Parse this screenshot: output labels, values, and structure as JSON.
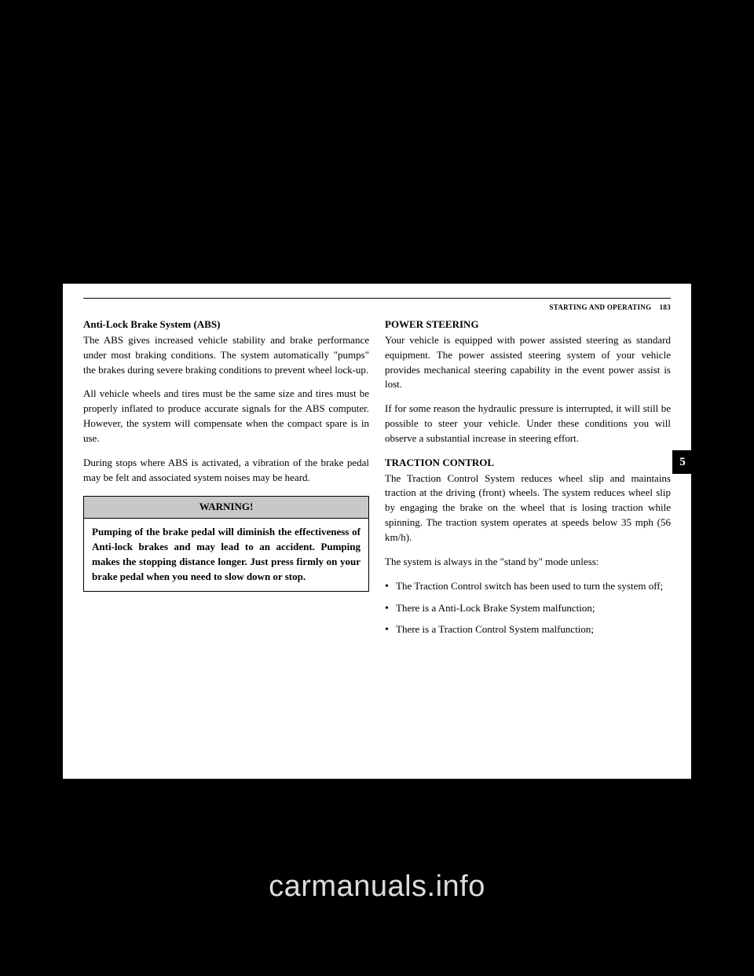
{
  "header": {
    "section": "STARTING AND OPERATING",
    "page_number": "183"
  },
  "side_tab": "5",
  "left_column": {
    "heading1": "Anti-Lock Brake System (ABS)",
    "para1": "The ABS gives increased vehicle stability and brake performance under most braking conditions. The system automatically \"pumps\" the brakes during severe braking conditions to prevent wheel lock-up.",
    "para2": "All vehicle wheels and tires must be the same size and tires must be properly inflated to produce accurate signals for the ABS computer. However, the system will compensate when the compact spare is in use.",
    "para3": "During stops where ABS is activated, a vibration of the brake pedal may be felt and associated system noises may be heard.",
    "warning": {
      "title": "WARNING!",
      "body": "Pumping of the brake pedal will diminish the effectiveness of Anti-lock brakes and may lead to an accident. Pumping makes the stopping distance longer. Just press firmly on your brake pedal when you need to slow down or stop."
    }
  },
  "right_column": {
    "heading1": "POWER STEERING",
    "para1": "Your vehicle is equipped with power assisted steering as standard equipment. The power assisted steering system of your vehicle provides mechanical steering capability in the event power assist is lost.",
    "para2": "If for some reason the hydraulic pressure is interrupted, it will still be possible to steer your vehicle. Under these conditions you will observe a substantial increase in steering effort.",
    "heading2": "TRACTION CONTROL",
    "para3": "The Traction Control System reduces wheel slip and maintains traction at the driving (front) wheels. The system reduces wheel slip by engaging the brake on the wheel that is losing traction while spinning. The traction system operates at speeds below 35 mph (56 km/h).",
    "para4": "The system is always in the \"stand by\" mode unless:",
    "bullets": [
      "The Traction Control switch has been used to turn the system off;",
      "There is a Anti-Lock Brake System malfunction;",
      "There is a Traction Control System malfunction;"
    ]
  },
  "watermark": "carmanuals.info"
}
